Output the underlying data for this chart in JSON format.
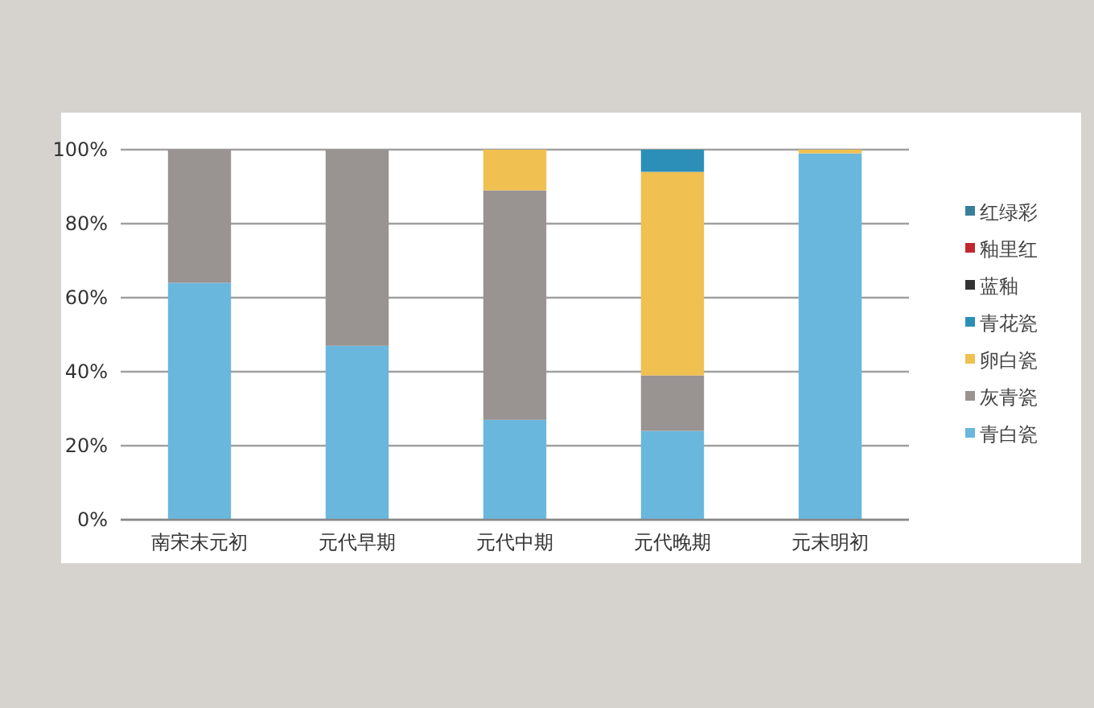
{
  "chart_data": {
    "type": "bar",
    "stacked": true,
    "categories": [
      "南宋末元初",
      "元代早期",
      "元代中期",
      "元代晚期",
      "元末明初"
    ],
    "series": [
      {
        "name": "青白瓷",
        "color": "#6ab7de",
        "values": [
          64,
          47,
          27,
          24,
          99
        ]
      },
      {
        "name": "灰青瓷",
        "color": "#999391",
        "values": [
          36,
          53,
          62,
          15,
          0
        ]
      },
      {
        "name": "卵白瓷",
        "color": "#f0c050",
        "values": [
          0,
          0,
          11,
          55,
          1
        ]
      },
      {
        "name": "青花瓷",
        "color": "#2b8fb8",
        "values": [
          0,
          0,
          0,
          6,
          0
        ]
      },
      {
        "name": "蓝釉",
        "color": "#333333",
        "values": [
          0,
          0,
          0,
          0,
          0
        ]
      },
      {
        "name": "釉里红",
        "color": "#c0282d",
        "values": [
          0,
          0,
          0,
          0,
          0
        ]
      },
      {
        "name": "红绿彩",
        "color": "#3a7f9a",
        "values": [
          0,
          0,
          0,
          0,
          0
        ]
      }
    ],
    "ylim": [
      0,
      100
    ],
    "yticks": [
      {
        "value": 0,
        "label": "0%"
      },
      {
        "value": 20,
        "label": "20%"
      },
      {
        "value": 40,
        "label": "40%"
      },
      {
        "value": 60,
        "label": "60%"
      },
      {
        "value": 80,
        "label": "80%"
      },
      {
        "value": 100,
        "label": "100%"
      }
    ],
    "grid": "y",
    "legend": "right"
  }
}
